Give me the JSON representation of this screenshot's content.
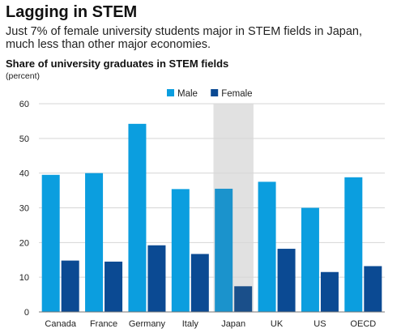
{
  "header": {
    "title": "Lagging in STEM",
    "subtitle": "Just 7% of female university students major in STEM fields in Japan, much less than other major economies."
  },
  "chart_data": {
    "type": "bar",
    "title": "Share of university graduates in STEM fields",
    "unit": "(percent)",
    "categories": [
      "Canada",
      "France",
      "Germany",
      "Italy",
      "Japan",
      "UK",
      "US",
      "OECD"
    ],
    "series": [
      {
        "name": "Male",
        "values": [
          39.5,
          40,
          54.2,
          35.4,
          35.5,
          37.5,
          30,
          38.8
        ],
        "color": "#0b9edf",
        "highlight_color": "#1b93cc"
      },
      {
        "name": "Female",
        "values": [
          14.8,
          14.5,
          19.2,
          16.7,
          7.4,
          18.2,
          11.5,
          13.2
        ],
        "color": "#0b4a93",
        "highlight_color": "#1a4f8a"
      }
    ],
    "highlight_category": "Japan",
    "highlight_band_color": "#e1e1e1",
    "ylim": [
      0,
      60
    ],
    "yticks": [
      0,
      10,
      20,
      30,
      40,
      50,
      60
    ],
    "grid": true,
    "legend_position": "top-center",
    "xlabel": "",
    "ylabel": ""
  }
}
